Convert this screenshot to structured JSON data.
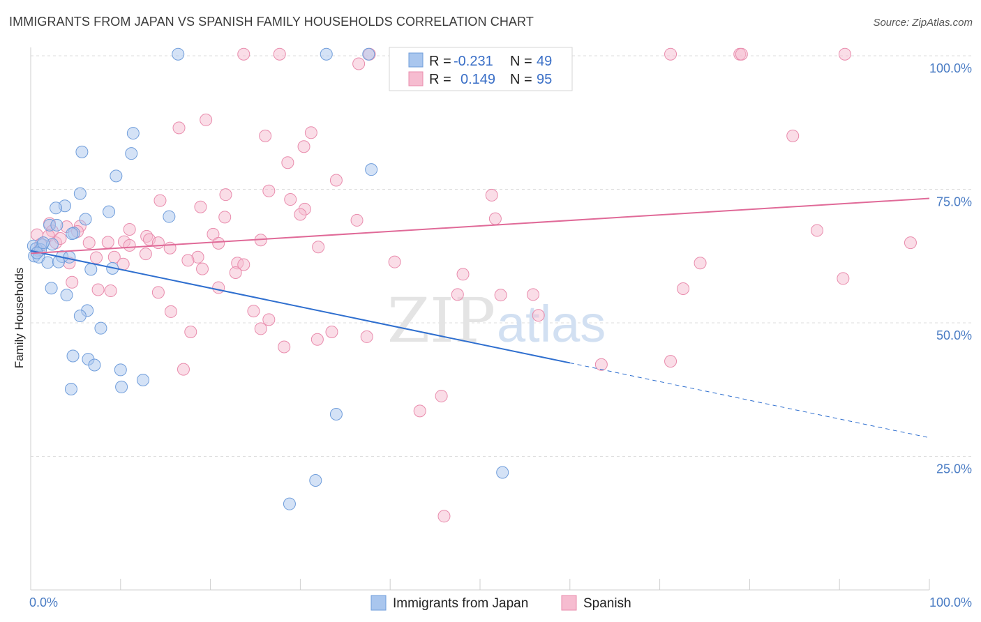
{
  "title": "IMMIGRANTS FROM JAPAN VS SPANISH FAMILY HOUSEHOLDS CORRELATION CHART",
  "source": "Source: ZipAtlas.com",
  "watermark": {
    "zip": "ZIP",
    "atlas": "atlas"
  },
  "colors": {
    "japan_fill": "#a9c6ee",
    "japan_stroke": "#6f9ddb",
    "japan_line": "#2f6fcf",
    "spanish_fill": "#f6bcd0",
    "spanish_stroke": "#e98cad",
    "spanish_line": "#e06a98",
    "grid": "#dddddd",
    "tick_text": "#4a7cc4"
  },
  "legend": {
    "r_label": "R =",
    "n_label": "N =",
    "japan": {
      "r": "-0.231",
      "n": "49"
    },
    "spanish": {
      "r": "0.149",
      "n": "95"
    }
  },
  "bottom_legend": [
    "Immigrants from Japan",
    "Spanish"
  ],
  "chart_data": {
    "type": "scatter",
    "ylabel": "Family Households",
    "xlim": [
      0,
      100
    ],
    "ylim": [
      0,
      105
    ],
    "x_tick_labels": [
      "0.0%",
      "100.0%"
    ],
    "y_ticks": [
      25,
      50,
      75,
      100
    ],
    "y_tick_labels": [
      "25.0%",
      "50.0%",
      "75.0%",
      "100.0%"
    ],
    "grid": true,
    "series": [
      {
        "name": "Immigrants from Japan",
        "trend": {
          "x": [
            0,
            60
          ],
          "y": [
            63.5,
            42.5
          ],
          "dashed_to": [
            100,
            28.5
          ]
        },
        "points": [
          [
            16.4,
            100.3
          ],
          [
            37.6,
            100.3
          ],
          [
            32.9,
            100.3
          ],
          [
            11.4,
            85.5
          ],
          [
            5.7,
            82.0
          ],
          [
            11.2,
            81.7
          ],
          [
            37.9,
            78.7
          ],
          [
            9.5,
            77.5
          ],
          [
            5.5,
            74.2
          ],
          [
            3.8,
            71.9
          ],
          [
            2.8,
            71.5
          ],
          [
            8.7,
            70.8
          ],
          [
            15.4,
            69.9
          ],
          [
            6.1,
            69.4
          ],
          [
            2.1,
            68.3
          ],
          [
            2.9,
            68.3
          ],
          [
            4.8,
            66.8
          ],
          [
            4.6,
            66.7
          ],
          [
            0.3,
            64.4
          ],
          [
            1.3,
            64.6
          ],
          [
            0.6,
            63.9
          ],
          [
            2.4,
            64.7
          ],
          [
            1.1,
            63.7
          ],
          [
            0.4,
            62.5
          ],
          [
            0.9,
            62.3
          ],
          [
            3.5,
            62.4
          ],
          [
            4.3,
            62.3
          ],
          [
            1.9,
            61.3
          ],
          [
            3.1,
            61.4
          ],
          [
            6.7,
            60.0
          ],
          [
            9.1,
            60.2
          ],
          [
            2.3,
            56.5
          ],
          [
            4.0,
            55.2
          ],
          [
            6.3,
            52.3
          ],
          [
            5.5,
            51.3
          ],
          [
            7.8,
            49.0
          ],
          [
            4.7,
            43.8
          ],
          [
            6.4,
            43.2
          ],
          [
            7.1,
            42.1
          ],
          [
            10.0,
            41.2
          ],
          [
            12.5,
            39.3
          ],
          [
            10.1,
            38.0
          ],
          [
            4.5,
            37.6
          ],
          [
            34.0,
            32.9
          ],
          [
            31.7,
            20.5
          ],
          [
            28.8,
            16.1
          ],
          [
            52.5,
            22.0
          ],
          [
            1.4,
            65.0
          ],
          [
            0.7,
            63.1
          ]
        ]
      },
      {
        "name": "Spanish",
        "trend": {
          "x": [
            0,
            100
          ],
          "y": [
            63.0,
            73.3
          ]
        },
        "points": [
          [
            23.7,
            100.3
          ],
          [
            27.7,
            100.3
          ],
          [
            37.7,
            100.3
          ],
          [
            53.9,
            100.3
          ],
          [
            71.2,
            100.3
          ],
          [
            78.9,
            100.3
          ],
          [
            79.1,
            100.3
          ],
          [
            90.6,
            100.3
          ],
          [
            36.5,
            98.5
          ],
          [
            48.2,
            98.5
          ],
          [
            19.5,
            88.0
          ],
          [
            16.5,
            86.5
          ],
          [
            26.1,
            85.0
          ],
          [
            31.2,
            85.6
          ],
          [
            30.4,
            83.0
          ],
          [
            84.8,
            85.0
          ],
          [
            28.6,
            80.0
          ],
          [
            34.0,
            76.7
          ],
          [
            26.5,
            74.7
          ],
          [
            21.7,
            74.0
          ],
          [
            51.3,
            73.9
          ],
          [
            28.9,
            73.1
          ],
          [
            14.4,
            72.9
          ],
          [
            18.9,
            71.7
          ],
          [
            30.5,
            71.3
          ],
          [
            21.6,
            69.8
          ],
          [
            30.0,
            70.3
          ],
          [
            36.3,
            69.2
          ],
          [
            51.7,
            69.5
          ],
          [
            2.1,
            68.6
          ],
          [
            5.5,
            68.1
          ],
          [
            4.0,
            68.0
          ],
          [
            11.0,
            67.5
          ],
          [
            2.4,
            67.2
          ],
          [
            0.7,
            66.5
          ],
          [
            2.0,
            66.3
          ],
          [
            5.2,
            67.1
          ],
          [
            20.3,
            66.6
          ],
          [
            87.5,
            67.3
          ],
          [
            12.9,
            66.2
          ],
          [
            13.2,
            65.6
          ],
          [
            14.2,
            65.0
          ],
          [
            8.6,
            65.1
          ],
          [
            10.4,
            65.2
          ],
          [
            11.0,
            64.5
          ],
          [
            6.5,
            65.0
          ],
          [
            20.9,
            64.9
          ],
          [
            25.6,
            65.5
          ],
          [
            1.1,
            64.7
          ],
          [
            2.8,
            65.0
          ],
          [
            15.5,
            64.0
          ],
          [
            32.0,
            64.2
          ],
          [
            97.9,
            65.0
          ],
          [
            12.8,
            62.9
          ],
          [
            7.3,
            62.2
          ],
          [
            9.3,
            62.3
          ],
          [
            18.6,
            62.3
          ],
          [
            17.5,
            61.7
          ],
          [
            23.0,
            61.2
          ],
          [
            40.5,
            61.4
          ],
          [
            74.5,
            61.2
          ],
          [
            10.3,
            61.0
          ],
          [
            4.3,
            61.2
          ],
          [
            23.7,
            60.9
          ],
          [
            19.1,
            60.1
          ],
          [
            22.8,
            59.4
          ],
          [
            48.1,
            59.1
          ],
          [
            90.4,
            58.3
          ],
          [
            4.6,
            57.6
          ],
          [
            20.9,
            56.6
          ],
          [
            72.6,
            56.4
          ],
          [
            7.5,
            56.2
          ],
          [
            8.9,
            56.0
          ],
          [
            14.2,
            55.7
          ],
          [
            47.5,
            55.3
          ],
          [
            52.3,
            55.2
          ],
          [
            55.9,
            55.3
          ],
          [
            15.6,
            52.1
          ],
          [
            24.8,
            52.2
          ],
          [
            56.5,
            51.4
          ],
          [
            26.5,
            50.6
          ],
          [
            25.6,
            48.9
          ],
          [
            17.8,
            48.3
          ],
          [
            33.5,
            48.3
          ],
          [
            37.4,
            47.4
          ],
          [
            31.9,
            46.9
          ],
          [
            28.2,
            45.5
          ],
          [
            71.2,
            42.8
          ],
          [
            63.5,
            42.2
          ],
          [
            17.0,
            41.3
          ],
          [
            45.7,
            36.3
          ],
          [
            43.3,
            33.5
          ],
          [
            46.0,
            13.8
          ],
          [
            0.9,
            63.5
          ],
          [
            3.3,
            65.8
          ]
        ]
      }
    ]
  }
}
